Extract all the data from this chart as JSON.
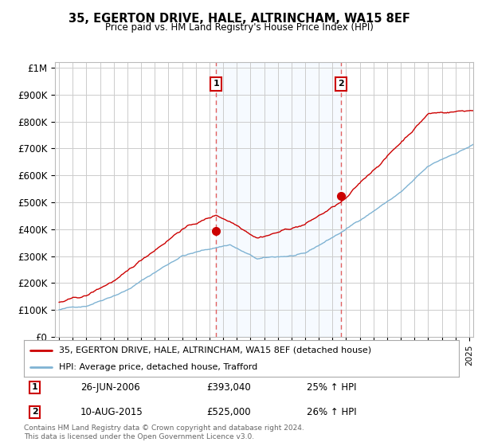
{
  "title": "35, EGERTON DRIVE, HALE, ALTRINCHAM, WA15 8EF",
  "subtitle": "Price paid vs. HM Land Registry's House Price Index (HPI)",
  "ylabel_ticks": [
    "£0",
    "£100K",
    "£200K",
    "£300K",
    "£400K",
    "£500K",
    "£600K",
    "£700K",
    "£800K",
    "£900K",
    "£1M"
  ],
  "ytick_values": [
    0,
    100000,
    200000,
    300000,
    400000,
    500000,
    600000,
    700000,
    800000,
    900000,
    1000000
  ],
  "xlim_start": 1994.7,
  "xlim_end": 2025.3,
  "ylim": [
    0,
    1020000
  ],
  "sale1_date": 2006.49,
  "sale1_price": 393040,
  "sale2_date": 2015.61,
  "sale2_price": 525000,
  "line1_label": "35, EGERTON DRIVE, HALE, ALTRINCHAM, WA15 8EF (detached house)",
  "line2_label": "HPI: Average price, detached house, Trafford",
  "line1_color": "#cc0000",
  "line2_color": "#7fb3d3",
  "marker_color": "#cc0000",
  "vline_color": "#e06060",
  "shade_color": "#ddeeff",
  "grid_color": "#cccccc",
  "bg_color": "#ffffff",
  "footnote": "Contains HM Land Registry data © Crown copyright and database right 2024.\nThis data is licensed under the Open Government Licence v3.0.",
  "legend1_date": "26-JUN-2006",
  "legend1_price": "£393,040",
  "legend1_pct": "25% ↑ HPI",
  "legend2_date": "10-AUG-2015",
  "legend2_price": "£525,000",
  "legend2_pct": "26% ↑ HPI"
}
